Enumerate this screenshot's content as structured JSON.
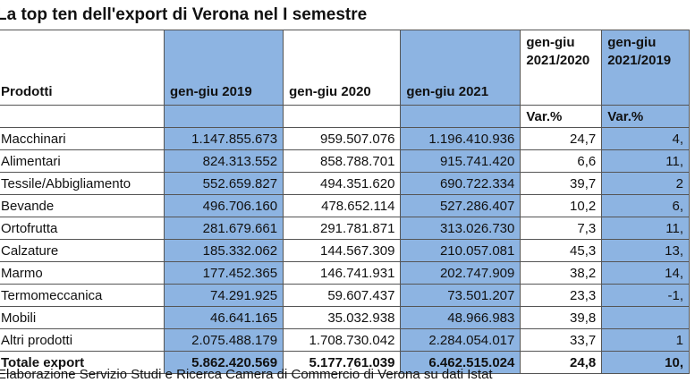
{
  "title": "La top ten dell'export di Verona nel I semestre",
  "headers": [
    "Prodotti",
    "gen-giu 2019",
    "gen-giu 2020",
    "gen-giu 2021",
    "gen-giu 2021/2020",
    "gen-giu 2021/2019"
  ],
  "subheader": "Var.%",
  "rows": [
    [
      "Macchinari",
      "1.147.855.673",
      "959.507.076",
      "1.196.410.936",
      "24,7",
      "4,"
    ],
    [
      "Alimentari",
      "824.313.552",
      "858.788.701",
      "915.741.420",
      "6,6",
      "11,"
    ],
    [
      "Tessile/Abbigliamento",
      "552.659.827",
      "494.351.620",
      "690.722.334",
      "39,7",
      "2"
    ],
    [
      "Bevande",
      "496.706.160",
      "478.652.114",
      "527.286.407",
      "10,2",
      "6,"
    ],
    [
      "Ortofrutta",
      "281.679.661",
      "291.781.871",
      "313.026.730",
      "7,3",
      "11,"
    ],
    [
      "Calzature",
      "185.332.062",
      "144.567.309",
      "210.057.081",
      "45,3",
      "13,"
    ],
    [
      "Marmo",
      "177.452.365",
      "146.741.931",
      "202.747.909",
      "38,2",
      "14,"
    ],
    [
      "Termomeccanica",
      "74.291.925",
      "59.607.437",
      "73.501.207",
      "23,3",
      "-1,"
    ],
    [
      "Mobili",
      "46.641.165",
      "35.032.938",
      "48.966.983",
      "39,8",
      ""
    ],
    [
      "Altri prodotti",
      "2.075.488.179",
      "1.708.730.042",
      "2.284.054.017",
      "33,7",
      "1"
    ]
  ],
  "total": [
    "Totale export",
    "5.862.420.569",
    "5.177.761.039",
    "6.462.515.024",
    "24,8",
    "10,"
  ],
  "note": "Elaborazione Servizio Studi e Ricerca Camera di Commercio di Verona su dati Istat",
  "colors": {
    "highlight": "#8db4e2"
  }
}
